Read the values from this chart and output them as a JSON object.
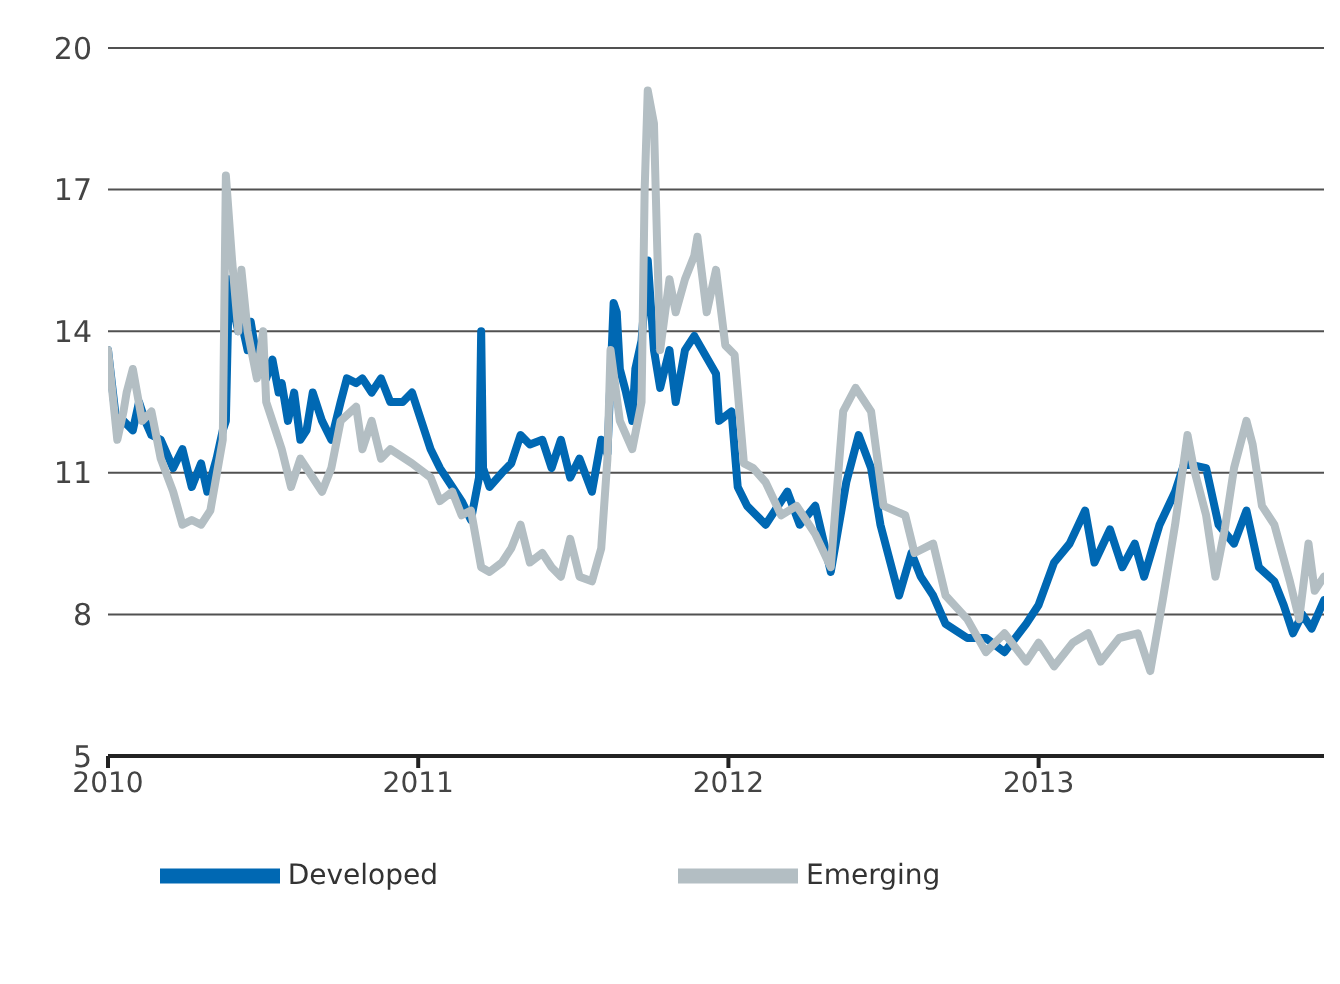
{
  "chart_data": {
    "type": "line",
    "xlim": [
      2010,
      2013.92
    ],
    "xticks": [
      2010,
      2011,
      2012,
      2013
    ],
    "ylim": [
      5,
      20
    ],
    "yticks": [
      5,
      8,
      11,
      14,
      17,
      20
    ],
    "grid": "y",
    "legend": "bottom",
    "marker": "none",
    "line_style": "solid",
    "series": [
      {
        "name": "Developed",
        "color": "#0068b3",
        "x": [
          2010.0,
          2010.03,
          2010.05,
          2010.08,
          2010.1,
          2010.12,
          2010.14,
          2010.17,
          2010.21,
          2010.24,
          2010.27,
          2010.3,
          2010.32,
          2010.35,
          2010.37,
          2010.38,
          2010.39,
          2010.4,
          2010.42,
          2010.43,
          2010.45,
          2010.46,
          2010.48,
          2010.51,
          2010.53,
          2010.55,
          2010.56,
          2010.58,
          2010.6,
          2010.62,
          2010.64,
          2010.66,
          2010.69,
          2010.72,
          2010.75,
          2010.77,
          2010.8,
          2010.82,
          2010.85,
          2010.88,
          2010.91,
          2010.95,
          2010.98,
          2011.01,
          2011.04,
          2011.07,
          2011.11,
          2011.14,
          2011.17,
          2011.196,
          2011.203,
          2011.209,
          2011.23,
          2011.27,
          2011.3,
          2011.33,
          2011.36,
          2011.4,
          2011.43,
          2011.46,
          2011.49,
          2011.52,
          2011.56,
          2011.59,
          2011.61,
          2011.63,
          2011.64,
          2011.65,
          2011.67,
          2011.69,
          2011.7,
          2011.72,
          2011.74,
          2011.76,
          2011.78,
          2011.81,
          2011.83,
          2011.86,
          2011.89,
          2011.96,
          2011.97,
          2012.01,
          2012.03,
          2012.06,
          2012.12,
          2012.19,
          2012.23,
          2012.28,
          2012.33,
          2012.38,
          2012.42,
          2012.46,
          2012.49,
          2012.55,
          2012.59,
          2012.62,
          2012.66,
          2012.7,
          2012.77,
          2012.83,
          2012.89,
          2012.96,
          2013.0,
          2013.05,
          2013.1,
          2013.15,
          2013.18,
          2013.23,
          2013.27,
          2013.31,
          2013.34,
          2013.39,
          2013.44,
          2013.47,
          2013.54,
          2013.58,
          2013.63,
          2013.67,
          2013.71,
          2013.76,
          2013.79,
          2013.82,
          2013.85,
          2013.88,
          2013.92
        ],
        "values": [
          13.6,
          11.9,
          12.1,
          11.9,
          12.5,
          12.1,
          11.8,
          11.7,
          11.1,
          11.5,
          10.7,
          11.2,
          10.6,
          11.3,
          11.9,
          12.1,
          15.1,
          14.6,
          14.0,
          14.2,
          13.6,
          14.2,
          13.4,
          13.0,
          13.4,
          12.7,
          12.9,
          12.1,
          12.7,
          11.7,
          11.9,
          12.7,
          12.1,
          11.7,
          12.5,
          13.0,
          12.9,
          13.0,
          12.7,
          13.0,
          12.5,
          12.5,
          12.7,
          12.1,
          11.5,
          11.1,
          10.7,
          10.4,
          10.0,
          10.9,
          14.0,
          11.1,
          10.7,
          11.0,
          11.2,
          11.8,
          11.6,
          11.7,
          11.1,
          11.7,
          10.9,
          11.3,
          10.6,
          11.7,
          11.4,
          14.6,
          14.4,
          13.2,
          12.7,
          12.1,
          13.2,
          13.8,
          15.5,
          13.6,
          12.8,
          13.6,
          12.5,
          13.6,
          13.9,
          13.1,
          12.1,
          12.3,
          10.7,
          10.3,
          9.9,
          10.6,
          9.9,
          10.3,
          8.9,
          10.8,
          11.8,
          11.1,
          9.9,
          8.4,
          9.3,
          8.8,
          8.4,
          7.8,
          7.5,
          7.5,
          7.2,
          7.8,
          8.2,
          9.1,
          9.5,
          10.2,
          9.1,
          9.8,
          9.0,
          9.5,
          8.8,
          9.9,
          10.6,
          11.2,
          11.1,
          9.9,
          9.5,
          10.2,
          9.0,
          8.7,
          8.2,
          7.6,
          8.0,
          7.7,
          8.3
        ]
      },
      {
        "name": "Emerging",
        "color": "#b3bec3",
        "x": [
          2010.0,
          2010.03,
          2010.05,
          2010.06,
          2010.08,
          2010.11,
          2010.14,
          2010.17,
          2010.21,
          2010.24,
          2010.27,
          2010.3,
          2010.33,
          2010.37,
          2010.38,
          2010.4,
          2010.42,
          2010.43,
          2010.45,
          2010.48,
          2010.5,
          2010.51,
          2010.54,
          2010.56,
          2010.59,
          2010.62,
          2010.66,
          2010.69,
          2010.72,
          2010.75,
          2010.8,
          2010.82,
          2010.85,
          2010.88,
          2010.91,
          2010.98,
          2011.04,
          2011.07,
          2011.11,
          2011.14,
          2011.17,
          2011.203,
          2011.23,
          2011.27,
          2011.3,
          2011.33,
          2011.36,
          2011.4,
          2011.43,
          2011.46,
          2011.49,
          2011.52,
          2011.56,
          2011.59,
          2011.61,
          2011.62,
          2011.65,
          2011.69,
          2011.72,
          2011.73,
          2011.74,
          2011.76,
          2011.77,
          2011.78,
          2011.81,
          2011.83,
          2011.86,
          2011.89,
          2011.9,
          2011.93,
          2011.96,
          2011.99,
          2012.02,
          2012.05,
          2012.08,
          2012.12,
          2012.17,
          2012.22,
          2012.28,
          2012.33,
          2012.37,
          2012.41,
          2012.46,
          2012.5,
          2012.57,
          2012.6,
          2012.66,
          2012.7,
          2012.77,
          2012.83,
          2012.89,
          2012.96,
          2013.0,
          2013.05,
          2013.11,
          2013.16,
          2013.2,
          2013.26,
          2013.32,
          2013.36,
          2013.4,
          2013.44,
          2013.48,
          2013.5,
          2013.54,
          2013.57,
          2013.6,
          2013.63,
          2013.67,
          2013.69,
          2013.72,
          2013.76,
          2013.81,
          2013.84,
          2013.87,
          2013.89,
          2013.92
        ],
        "values": [
          13.6,
          11.7,
          12.3,
          12.7,
          13.2,
          12.1,
          12.3,
          11.3,
          10.6,
          9.9,
          10.0,
          9.9,
          10.2,
          11.7,
          17.3,
          15.5,
          14.0,
          15.3,
          14.0,
          13.0,
          14.0,
          12.5,
          11.9,
          11.5,
          10.7,
          11.3,
          10.9,
          10.6,
          11.1,
          12.1,
          12.4,
          11.5,
          12.1,
          11.3,
          11.5,
          11.2,
          10.9,
          10.4,
          10.6,
          10.1,
          10.2,
          9.0,
          8.9,
          9.1,
          9.4,
          9.9,
          9.1,
          9.3,
          9.0,
          8.8,
          9.6,
          8.8,
          8.7,
          9.4,
          11.3,
          13.6,
          12.1,
          11.5,
          12.5,
          17.0,
          19.1,
          18.4,
          15.9,
          13.6,
          15.1,
          14.4,
          15.1,
          15.6,
          16.0,
          14.4,
          15.3,
          13.7,
          13.5,
          11.2,
          11.1,
          10.8,
          10.1,
          10.3,
          9.7,
          9.0,
          12.3,
          12.8,
          12.3,
          10.3,
          10.1,
          9.3,
          9.5,
          8.4,
          7.9,
          7.2,
          7.6,
          7.0,
          7.4,
          6.9,
          7.4,
          7.6,
          7.0,
          7.5,
          7.6,
          6.8,
          8.3,
          9.9,
          11.8,
          11.1,
          10.1,
          8.8,
          9.8,
          11.1,
          12.1,
          11.6,
          10.3,
          9.9,
          8.7,
          7.9,
          9.5,
          8.5,
          8.8
        ]
      }
    ]
  }
}
